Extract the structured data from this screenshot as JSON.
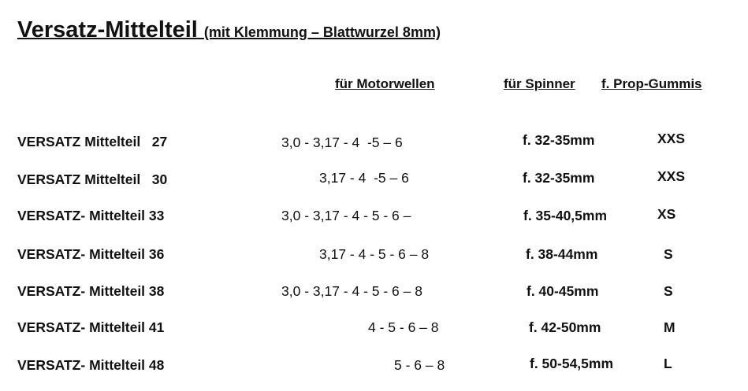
{
  "title": "Versatz-Mittelteil",
  "subtitle": "(mit Klemmung – Blattwurzel 8mm)",
  "headers": {
    "motor": "für Motorwellen",
    "spinner": "für Spinner",
    "prop": "f. Prop-Gummis"
  },
  "rows": [
    {
      "name": "VERSATZ Mittelteil   27",
      "motor": "3,0 - 3,17 - 4  -5 – 6",
      "spinner": "f. 32-35mm",
      "size": "XXS"
    },
    {
      "name": "VERSATZ Mittelteil   30",
      "motor": "3,17 - 4  -5 – 6",
      "spinner": "f. 32-35mm",
      "size": "XXS"
    },
    {
      "name": "VERSATZ- Mittelteil 33",
      "motor": "3,0 - 3,17 - 4 - 5 - 6 –",
      "spinner": "f. 35-40,5mm",
      "size": "XS"
    },
    {
      "name": "VERSATZ- Mittelteil 36",
      "motor": "3,17 - 4 - 5 - 6 – 8",
      "spinner": "f. 38-44mm",
      "size": "S"
    },
    {
      "name": "VERSATZ- Mittelteil 38",
      "motor": "3,0 - 3,17 - 4 - 5 - 6 – 8",
      "spinner": "f. 40-45mm",
      "size": "S"
    },
    {
      "name": "VERSATZ- Mittelteil 41",
      "motor": "4 - 5 - 6 – 8",
      "spinner": "f. 42-50mm",
      "size": "M"
    },
    {
      "name": "VERSATZ- Mittelteil 48",
      "motor": "5 - 6 – 8",
      "spinner": "f. 50-54,5mm",
      "size": "L"
    }
  ]
}
